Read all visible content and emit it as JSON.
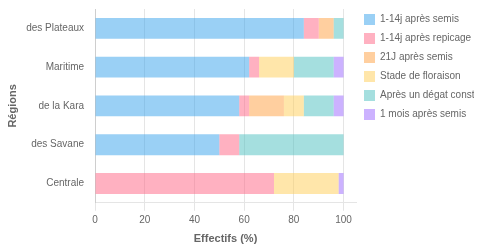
{
  "chart_data": {
    "type": "bar",
    "orientation": "horizontal",
    "stacked": true,
    "categories": [
      "Centrale",
      "des Savane",
      "de la Kara",
      "Maritime",
      "des Plateaux"
    ],
    "series": [
      {
        "name": "1-14j après semis",
        "values": [
          0,
          50,
          58,
          62,
          84
        ]
      },
      {
        "name": "1-14j après repicage",
        "values": [
          72,
          8,
          4,
          4,
          6
        ]
      },
      {
        "name": "21J après semis",
        "values": [
          0,
          0,
          14,
          0,
          6
        ]
      },
      {
        "name": "Stade de floraison",
        "values": [
          26,
          0,
          8,
          14,
          0
        ]
      },
      {
        "name": "Après un dégat constaté",
        "values": [
          0,
          42,
          12,
          16,
          4
        ]
      },
      {
        "name": "1 mois après semis",
        "values": [
          2,
          0,
          4,
          4,
          0
        ]
      }
    ],
    "xlabel": "Effectifs (%)",
    "ylabel": "Régions",
    "xlim": [
      0,
      105
    ],
    "xticks": [
      0,
      20,
      40,
      60,
      80,
      100
    ],
    "grid": true,
    "legend": "right"
  }
}
